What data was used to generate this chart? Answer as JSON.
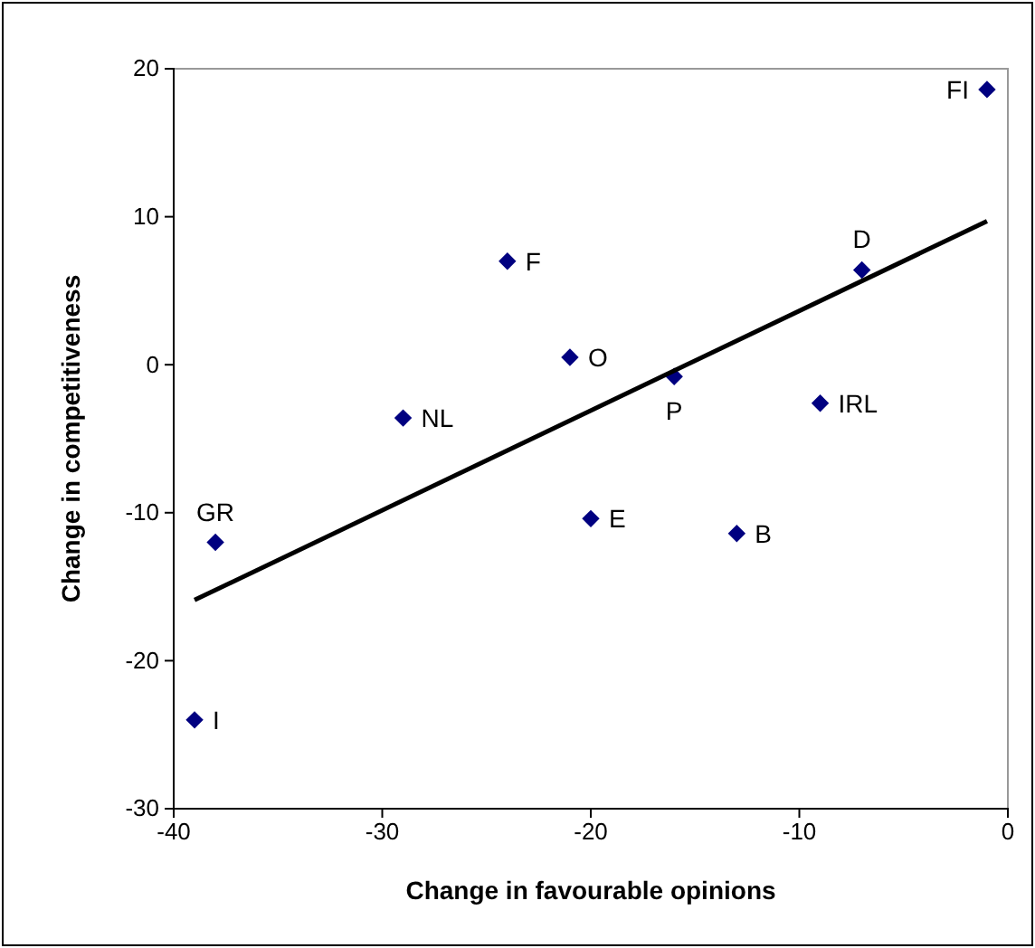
{
  "chart_data": {
    "type": "scatter",
    "xlabel": "Change in favourable opinions",
    "ylabel": "Change in competitiveness",
    "xlim": [
      -40,
      0
    ],
    "xticks": [
      -40,
      -30,
      -20,
      -10,
      0
    ],
    "ylim": [
      -30,
      20
    ],
    "yticks": [
      -30,
      -20,
      -10,
      0,
      10,
      20
    ],
    "grid": false,
    "marker": "diamond",
    "series": [
      {
        "color": "#000080",
        "x": [
          -1,
          -7,
          -24,
          -21,
          -16,
          -9,
          -29,
          -20,
          -13,
          -38,
          -39
        ],
        "values": [
          18.6,
          6.4,
          7.0,
          0.5,
          -0.8,
          -2.6,
          -3.6,
          -10.4,
          -11.4,
          -12.0,
          -24.0
        ]
      },
      {
        "type": "line",
        "color": "#000000",
        "marker": "none",
        "line_style": "solid",
        "x": [
          -39,
          -1
        ],
        "values": [
          -15.9,
          9.7
        ]
      }
    ],
    "annotations": [
      {
        "text": "FI",
        "x": -1,
        "y": 18.6
      },
      {
        "text": "D",
        "x": -7,
        "y": 6.4
      },
      {
        "text": "F",
        "x": -24,
        "y": 7.0
      },
      {
        "text": "O",
        "x": -21,
        "y": 0.5
      },
      {
        "text": "P",
        "x": -16,
        "y": -0.8
      },
      {
        "text": "IRL",
        "x": -9,
        "y": -2.6
      },
      {
        "text": "NL",
        "x": -29,
        "y": -3.6
      },
      {
        "text": "E",
        "x": -20,
        "y": -10.4
      },
      {
        "text": "B",
        "x": -13,
        "y": -11.4
      },
      {
        "text": "GR",
        "x": -38,
        "y": -12.0
      },
      {
        "text": "I",
        "x": -39,
        "y": -24.0
      }
    ]
  }
}
